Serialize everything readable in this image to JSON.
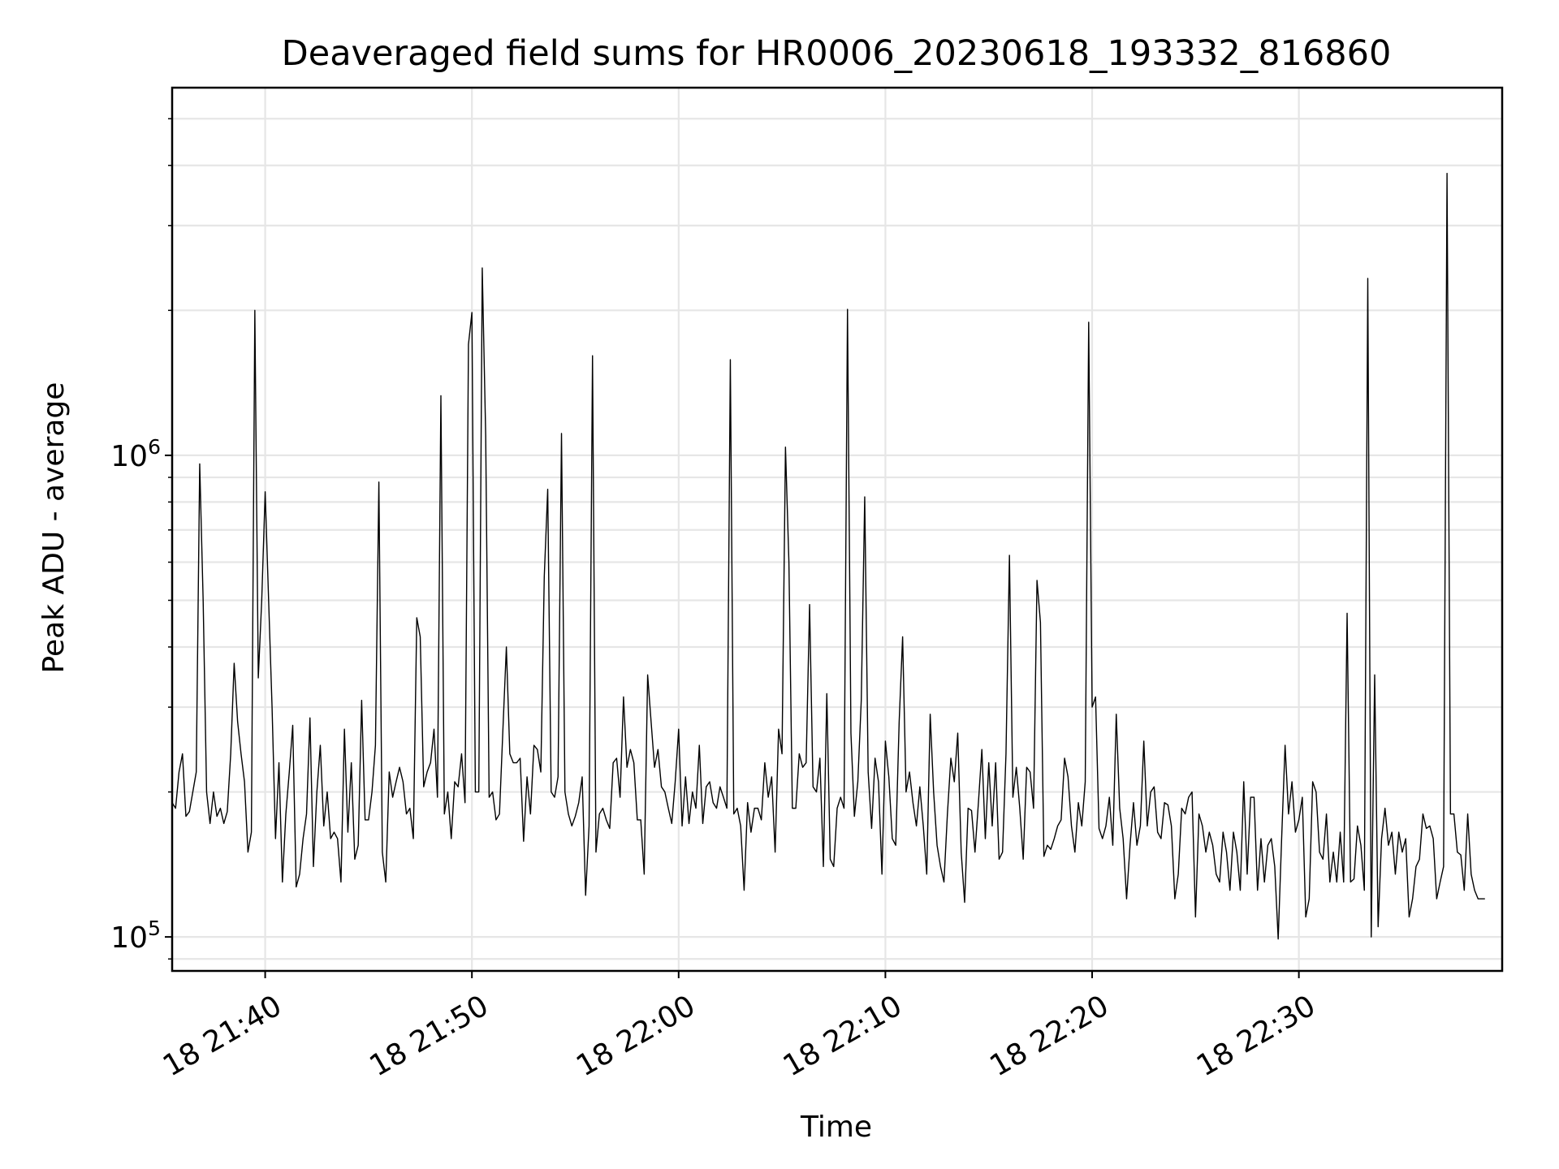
{
  "chart_data": {
    "type": "line",
    "title": "Deaveraged field sums for HR0006_20230618_193332_816860",
    "xlabel": "Time",
    "ylabel": "Peak ADU - average",
    "yscale": "log",
    "grid": true,
    "line_color": "#000000",
    "grid_color": "#e6e6e6",
    "ylim": [
      85000,
      5800000
    ],
    "xlim": [
      "2023-06-18 21:35:30",
      "2023-06-18 22:39:50"
    ],
    "x_ticks": [
      {
        "t": "2023-06-18 21:40:00",
        "label": "18 21:40"
      },
      {
        "t": "2023-06-18 21:50:00",
        "label": "18 21:50"
      },
      {
        "t": "2023-06-18 22:00:00",
        "label": "18 22:00"
      },
      {
        "t": "2023-06-18 22:10:00",
        "label": "18 22:10"
      },
      {
        "t": "2023-06-18 22:20:00",
        "label": "18 22:20"
      },
      {
        "t": "2023-06-18 22:30:00",
        "label": "18 22:30"
      }
    ],
    "y_major_ticks": [
      {
        "v": 100000,
        "base": "10",
        "exp": "5"
      },
      {
        "v": 1000000,
        "base": "10",
        "exp": "6"
      }
    ],
    "series": [
      {
        "x_start": "2023-06-18 21:35:30",
        "x_step_seconds": 10,
        "values": [
          190000,
          185000,
          220000,
          240000,
          178000,
          182000,
          200000,
          220000,
          960000,
          500000,
          200000,
          172000,
          200000,
          178000,
          185000,
          172000,
          182000,
          240000,
          370000,
          280000,
          240000,
          210000,
          150000,
          165000,
          2000000,
          345000,
          500000,
          840000,
          500000,
          300000,
          160000,
          230000,
          130000,
          180000,
          220000,
          275000,
          127000,
          135000,
          160000,
          180000,
          285000,
          140000,
          200000,
          250000,
          170000,
          200000,
          160000,
          165000,
          160000,
          130000,
          270000,
          165000,
          230000,
          145000,
          155000,
          310000,
          175000,
          175000,
          200000,
          250000,
          880000,
          150000,
          130000,
          220000,
          195000,
          210000,
          225000,
          210000,
          180000,
          185000,
          160000,
          460000,
          420000,
          205000,
          220000,
          230000,
          270000,
          195000,
          1330000,
          180000,
          200000,
          160000,
          210000,
          205000,
          240000,
          190000,
          1700000,
          1980000,
          200000,
          200000,
          2450000,
          1100000,
          195000,
          200000,
          175000,
          180000,
          270000,
          400000,
          240000,
          230000,
          230000,
          235000,
          158000,
          215000,
          180000,
          250000,
          245000,
          220000,
          560000,
          850000,
          200000,
          195000,
          215000,
          1110000,
          200000,
          180000,
          170000,
          178000,
          190000,
          215000,
          122000,
          170000,
          1610000,
          150000,
          180000,
          185000,
          175000,
          168000,
          230000,
          235000,
          195000,
          315000,
          225000,
          245000,
          230000,
          175000,
          175000,
          135000,
          350000,
          280000,
          225000,
          245000,
          205000,
          200000,
          185000,
          172000,
          210000,
          270000,
          170000,
          215000,
          172000,
          200000,
          185000,
          250000,
          172000,
          205000,
          210000,
          190000,
          185000,
          205000,
          195000,
          185000,
          1580000,
          180000,
          185000,
          170000,
          125000,
          190000,
          165000,
          185000,
          185000,
          175000,
          230000,
          195000,
          215000,
          150000,
          270000,
          240000,
          1040000,
          600000,
          185000,
          185000,
          240000,
          225000,
          230000,
          490000,
          205000,
          200000,
          235000,
          140000,
          320000,
          145000,
          140000,
          185000,
          195000,
          185000,
          2010000,
          265000,
          178000,
          210000,
          310000,
          820000,
          220000,
          168000,
          235000,
          210000,
          135000,
          255000,
          215000,
          160000,
          155000,
          280000,
          420000,
          200000,
          220000,
          190000,
          170000,
          205000,
          170000,
          135000,
          290000,
          200000,
          155000,
          140000,
          130000,
          180000,
          235000,
          210000,
          265000,
          150000,
          118000,
          185000,
          183000,
          150000,
          190000,
          245000,
          160000,
          230000,
          170000,
          230000,
          145000,
          150000,
          240000,
          620000,
          195000,
          225000,
          185000,
          145000,
          225000,
          220000,
          185000,
          550000,
          450000,
          147000,
          155000,
          152000,
          160000,
          170000,
          175000,
          235000,
          215000,
          170000,
          150000,
          190000,
          170000,
          210000,
          1890000,
          300000,
          315000,
          168000,
          160000,
          170000,
          195000,
          155000,
          290000,
          185000,
          160000,
          120000,
          155000,
          190000,
          155000,
          170000,
          255000,
          170000,
          200000,
          205000,
          165000,
          160000,
          190000,
          188000,
          170000,
          120000,
          135000,
          185000,
          180000,
          195000,
          200000,
          110000,
          180000,
          170000,
          150000,
          165000,
          155000,
          135000,
          130000,
          165000,
          150000,
          125000,
          165000,
          150000,
          125000,
          210000,
          135000,
          195000,
          195000,
          125000,
          160000,
          130000,
          155000,
          160000,
          140000,
          99000,
          160000,
          250000,
          180000,
          210000,
          165000,
          175000,
          195000,
          110000,
          120000,
          210000,
          200000,
          150000,
          145000,
          180000,
          130000,
          150000,
          130000,
          165000,
          130000,
          470000,
          130000,
          132000,
          170000,
          155000,
          125000,
          2330000,
          100000,
          350000,
          105000,
          160000,
          185000,
          155000,
          165000,
          135000,
          165000,
          150000,
          160000,
          110000,
          120000,
          140000,
          145000,
          180000,
          168000,
          170000,
          160000,
          120000,
          130000,
          140000,
          3850000,
          180000,
          180000,
          150000,
          148000,
          125000,
          180000,
          135000,
          125000,
          120000,
          120000,
          120000
        ]
      }
    ]
  }
}
